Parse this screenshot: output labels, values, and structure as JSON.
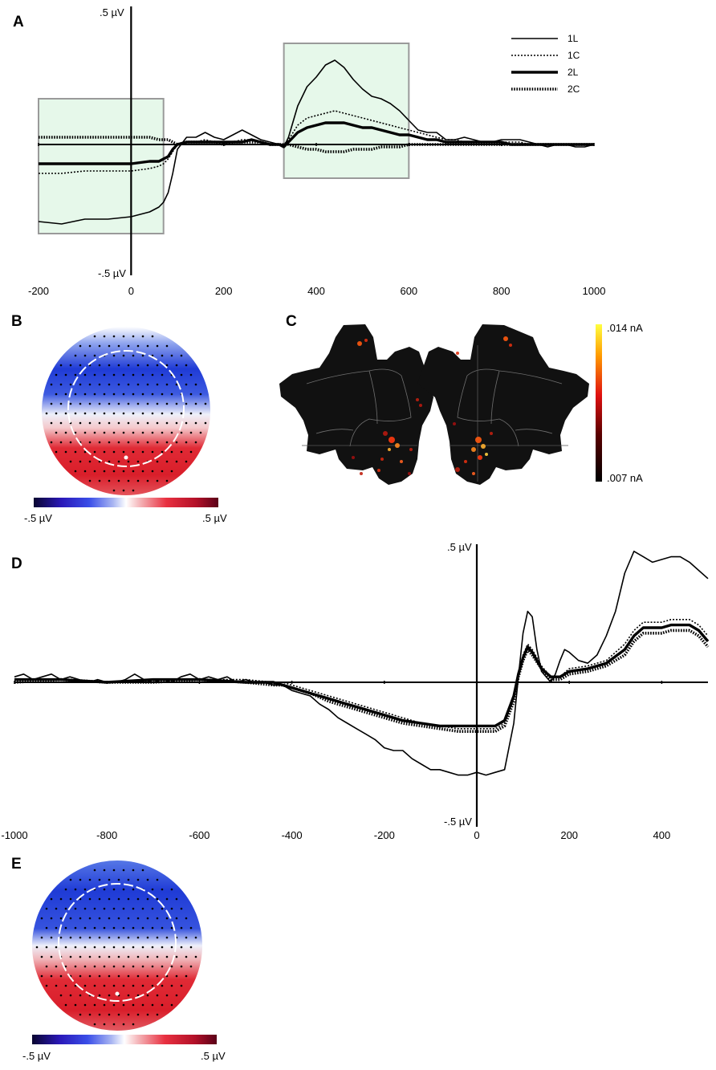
{
  "figure": {
    "background": "#ffffff",
    "colors": {
      "window_fill": "#e6f8ea",
      "window_stroke": "#9a9a9a",
      "topo_negative": "#1f3bd6",
      "topo_positive": "#d91e2a",
      "brain_fill": "#111111"
    }
  },
  "panels": {
    "A": {
      "letter": "A"
    },
    "B": {
      "letter": "B"
    },
    "C": {
      "letter": "C"
    },
    "D": {
      "letter": "D"
    },
    "E": {
      "letter": "E"
    }
  },
  "chart_data": [
    {
      "panel": "A",
      "type": "line",
      "title": "",
      "xlabel": "",
      "ylabel": "",
      "xlim": [
        -200,
        1000
      ],
      "ylim": [
        -0.5,
        0.5
      ],
      "y_top_label": ".5 µV",
      "y_bottom_label": "-.5 µV",
      "x_ticks": [
        -200,
        0,
        200,
        400,
        600,
        800,
        1000
      ],
      "x_tick_labels": [
        "-200",
        "0",
        "200",
        "400",
        "600",
        "800",
        "1000"
      ],
      "highlight_windows": [
        {
          "x": [
            -200,
            70
          ],
          "y": [
            -0.37,
            0.19
          ]
        },
        {
          "x": [
            330,
            600
          ],
          "y": [
            -0.14,
            0.42
          ]
        }
      ],
      "series": [
        {
          "name": "1L",
          "style": "thin-solid",
          "x": [
            -200,
            -150,
            -100,
            -50,
            0,
            40,
            60,
            70,
            80,
            90,
            100,
            120,
            140,
            160,
            180,
            200,
            220,
            240,
            260,
            280,
            300,
            320,
            330,
            340,
            360,
            380,
            400,
            420,
            440,
            460,
            480,
            500,
            520,
            540,
            560,
            580,
            600,
            620,
            640,
            660,
            680,
            700,
            720,
            740,
            760,
            780,
            800,
            820,
            840,
            860,
            880,
            900,
            920,
            940,
            960,
            980,
            1000
          ],
          "values": [
            -0.32,
            -0.33,
            -0.31,
            -0.31,
            -0.3,
            -0.28,
            -0.26,
            -0.24,
            -0.2,
            -0.12,
            -0.02,
            0.03,
            0.03,
            0.05,
            0.03,
            0.02,
            0.04,
            0.06,
            0.04,
            0.02,
            0.01,
            0.0,
            -0.01,
            0.03,
            0.16,
            0.24,
            0.28,
            0.33,
            0.35,
            0.32,
            0.27,
            0.23,
            0.2,
            0.19,
            0.17,
            0.14,
            0.1,
            0.06,
            0.05,
            0.05,
            0.02,
            0.02,
            0.03,
            0.02,
            0.01,
            0.01,
            0.02,
            0.02,
            0.02,
            0.01,
            0.0,
            -0.01,
            0.0,
            0.0,
            -0.01,
            -0.01,
            0.0
          ]
        },
        {
          "name": "1C",
          "style": "thin-dotted",
          "x": [
            -200,
            -150,
            -100,
            -50,
            0,
            40,
            60,
            70,
            80,
            90,
            100,
            120,
            140,
            160,
            180,
            200,
            220,
            240,
            260,
            280,
            300,
            320,
            330,
            340,
            360,
            380,
            400,
            420,
            440,
            460,
            480,
            500,
            520,
            540,
            560,
            580,
            600,
            620,
            640,
            660,
            680,
            700,
            720,
            740,
            760,
            780,
            800,
            820,
            840,
            860,
            880,
            900,
            920,
            940,
            960,
            980,
            1000
          ],
          "values": [
            -0.12,
            -0.12,
            -0.11,
            -0.11,
            -0.11,
            -0.1,
            -0.09,
            -0.08,
            -0.06,
            -0.03,
            0.0,
            0.01,
            0.01,
            0.02,
            0.01,
            0.0,
            0.01,
            0.02,
            0.02,
            0.01,
            0.0,
            0.0,
            0.0,
            0.02,
            0.08,
            0.11,
            0.12,
            0.13,
            0.14,
            0.13,
            0.12,
            0.11,
            0.1,
            0.09,
            0.08,
            0.07,
            0.06,
            0.05,
            0.04,
            0.03,
            0.02,
            0.02,
            0.01,
            0.01,
            0.01,
            0.01,
            0.01,
            0.01,
            0.01,
            0.0,
            0.0,
            0.0,
            0.0,
            0.0,
            0.0,
            0.0,
            0.0
          ]
        },
        {
          "name": "2L",
          "style": "thick-solid",
          "x": [
            -200,
            -150,
            -100,
            -50,
            0,
            40,
            60,
            70,
            80,
            90,
            100,
            120,
            140,
            160,
            180,
            200,
            220,
            240,
            260,
            280,
            300,
            320,
            330,
            340,
            360,
            380,
            400,
            420,
            440,
            460,
            480,
            500,
            520,
            540,
            560,
            580,
            600,
            620,
            640,
            660,
            680,
            700,
            720,
            740,
            760,
            780,
            800,
            820,
            840,
            860,
            880,
            900,
            920,
            940,
            960,
            980,
            1000
          ],
          "values": [
            -0.08,
            -0.08,
            -0.08,
            -0.08,
            -0.08,
            -0.07,
            -0.07,
            -0.06,
            -0.05,
            -0.02,
            0.0,
            0.01,
            0.01,
            0.01,
            0.01,
            0.01,
            0.01,
            0.01,
            0.02,
            0.01,
            0.0,
            0.0,
            -0.01,
            0.01,
            0.05,
            0.07,
            0.08,
            0.09,
            0.09,
            0.09,
            0.08,
            0.07,
            0.07,
            0.06,
            0.05,
            0.04,
            0.04,
            0.03,
            0.02,
            0.02,
            0.01,
            0.01,
            0.01,
            0.01,
            0.01,
            0.01,
            0.01,
            0.0,
            0.0,
            0.0,
            0.0,
            0.0,
            0.0,
            0.0,
            0.0,
            0.0,
            0.0
          ]
        },
        {
          "name": "2C",
          "style": "thick-dotted",
          "x": [
            -200,
            -150,
            -100,
            -50,
            0,
            40,
            60,
            70,
            80,
            90,
            100,
            120,
            140,
            160,
            180,
            200,
            220,
            240,
            260,
            280,
            300,
            320,
            330,
            340,
            360,
            380,
            400,
            420,
            440,
            460,
            480,
            500,
            520,
            540,
            560,
            580,
            600,
            620,
            640,
            660,
            680,
            700,
            720,
            740,
            760,
            780,
            800,
            820,
            840,
            860,
            880,
            900,
            920,
            940,
            960,
            980,
            1000
          ],
          "values": [
            0.03,
            0.03,
            0.03,
            0.03,
            0.03,
            0.03,
            0.02,
            0.02,
            0.02,
            0.01,
            0.0,
            0.01,
            0.01,
            0.01,
            0.01,
            0.0,
            0.01,
            0.01,
            0.01,
            0.01,
            0.0,
            0.0,
            0.0,
            0.0,
            -0.01,
            -0.02,
            -0.02,
            -0.03,
            -0.03,
            -0.03,
            -0.02,
            -0.02,
            -0.02,
            -0.01,
            -0.01,
            -0.01,
            0.0,
            0.0,
            0.0,
            0.0,
            0.0,
            0.0,
            0.0,
            0.0,
            0.0,
            0.0,
            0.0,
            0.0,
            0.0,
            0.0,
            0.0,
            0.0,
            0.0,
            0.0,
            0.0,
            0.0,
            0.0
          ]
        }
      ],
      "legend": [
        {
          "name": "1L",
          "style": "thin-solid"
        },
        {
          "name": "1C",
          "style": "thin-dotted"
        },
        {
          "name": "2L",
          "style": "thick-solid"
        },
        {
          "name": "2C",
          "style": "thick-dotted"
        }
      ],
      "legend_position": "top-right"
    },
    {
      "panel": "D",
      "type": "line",
      "title": "",
      "xlabel": "",
      "ylabel": "",
      "xlim": [
        -1000,
        500
      ],
      "ylim": [
        -0.5,
        0.5
      ],
      "y_top_label": ".5 µV",
      "y_bottom_label": "-.5 µV",
      "x_ticks": [
        -1000,
        -800,
        -600,
        -400,
        -200,
        0,
        200,
        400
      ],
      "x_tick_labels": [
        "-1000",
        "-800",
        "-600",
        "-400",
        "-200",
        "0",
        "200",
        "400"
      ],
      "series": [
        {
          "name": "1L",
          "style": "thin-solid",
          "x": [
            -1000,
            -980,
            -960,
            -940,
            -920,
            -900,
            -880,
            -860,
            -840,
            -820,
            -800,
            -780,
            -760,
            -740,
            -720,
            -700,
            -680,
            -660,
            -640,
            -620,
            -600,
            -580,
            -560,
            -540,
            -520,
            -500,
            -480,
            -460,
            -440,
            -420,
            -400,
            -380,
            -360,
            -340,
            -320,
            -300,
            -280,
            -260,
            -240,
            -220,
            -200,
            -180,
            -160,
            -140,
            -120,
            -100,
            -80,
            -60,
            -40,
            -20,
            0,
            20,
            40,
            60,
            80,
            90,
            100,
            110,
            120,
            130,
            140,
            150,
            160,
            170,
            180,
            190,
            200,
            220,
            240,
            260,
            280,
            300,
            320,
            340,
            360,
            380,
            400,
            420,
            440,
            460,
            480,
            500
          ],
          "values": [
            0.02,
            0.03,
            0.01,
            0.02,
            0.03,
            0.01,
            0.02,
            0.01,
            0.0,
            0.01,
            0.0,
            0.0,
            0.01,
            0.03,
            0.01,
            0.0,
            0.01,
            0.0,
            0.02,
            0.03,
            0.01,
            0.02,
            0.01,
            0.02,
            0.0,
            0.01,
            0.0,
            0.0,
            -0.01,
            -0.01,
            -0.03,
            -0.04,
            -0.05,
            -0.08,
            -0.1,
            -0.13,
            -0.15,
            -0.17,
            -0.19,
            -0.21,
            -0.24,
            -0.25,
            -0.25,
            -0.28,
            -0.3,
            -0.32,
            -0.32,
            -0.33,
            -0.34,
            -0.34,
            -0.33,
            -0.34,
            -0.33,
            -0.32,
            -0.15,
            0.02,
            0.18,
            0.26,
            0.24,
            0.12,
            0.04,
            0.02,
            0.0,
            0.03,
            0.08,
            0.12,
            0.11,
            0.08,
            0.07,
            0.1,
            0.17,
            0.26,
            0.4,
            0.48,
            0.46,
            0.44,
            0.45,
            0.46,
            0.46,
            0.44,
            0.41,
            0.38
          ]
        },
        {
          "name": "1C",
          "style": "thin-dotted",
          "x": [
            -1000,
            -900,
            -800,
            -700,
            -600,
            -500,
            -440,
            -420,
            -400,
            -360,
            -320,
            -280,
            -240,
            -200,
            -160,
            -120,
            -80,
            -40,
            0,
            40,
            60,
            80,
            90,
            100,
            110,
            120,
            140,
            160,
            180,
            200,
            240,
            280,
            320,
            340,
            360,
            380,
            400,
            420,
            440,
            460,
            480,
            500
          ],
          "values": [
            0.01,
            0.01,
            0.0,
            0.01,
            0.01,
            0.01,
            0.0,
            0.0,
            -0.01,
            -0.03,
            -0.05,
            -0.07,
            -0.09,
            -0.11,
            -0.13,
            -0.15,
            -0.16,
            -0.17,
            -0.17,
            -0.17,
            -0.15,
            -0.06,
            0.03,
            0.1,
            0.14,
            0.12,
            0.06,
            0.02,
            0.02,
            0.05,
            0.06,
            0.08,
            0.14,
            0.19,
            0.22,
            0.22,
            0.22,
            0.23,
            0.23,
            0.23,
            0.21,
            0.17
          ]
        },
        {
          "name": "2L",
          "style": "thick-solid",
          "x": [
            -1000,
            -900,
            -800,
            -700,
            -600,
            -500,
            -440,
            -420,
            -400,
            -360,
            -320,
            -280,
            -240,
            -200,
            -160,
            -120,
            -80,
            -40,
            0,
            40,
            60,
            80,
            90,
            100,
            110,
            120,
            140,
            160,
            180,
            200,
            240,
            280,
            320,
            340,
            360,
            380,
            400,
            420,
            440,
            460,
            480,
            500
          ],
          "values": [
            0.01,
            0.01,
            0.0,
            0.01,
            0.01,
            0.0,
            0.0,
            -0.01,
            -0.02,
            -0.04,
            -0.06,
            -0.08,
            -0.1,
            -0.12,
            -0.14,
            -0.15,
            -0.16,
            -0.16,
            -0.16,
            -0.16,
            -0.14,
            -0.05,
            0.03,
            0.09,
            0.13,
            0.11,
            0.05,
            0.02,
            0.02,
            0.04,
            0.05,
            0.07,
            0.12,
            0.17,
            0.2,
            0.2,
            0.2,
            0.21,
            0.21,
            0.21,
            0.19,
            0.15
          ]
        },
        {
          "name": "2C",
          "style": "thick-dotted",
          "x": [
            -1000,
            -900,
            -800,
            -700,
            -600,
            -500,
            -440,
            -420,
            -400,
            -360,
            -320,
            -280,
            -240,
            -200,
            -160,
            -120,
            -80,
            -40,
            0,
            40,
            60,
            80,
            90,
            100,
            110,
            120,
            140,
            160,
            180,
            200,
            240,
            280,
            320,
            340,
            360,
            380,
            400,
            420,
            440,
            460,
            480,
            500
          ],
          "values": [
            0.0,
            0.01,
            0.0,
            0.0,
            0.01,
            0.0,
            -0.01,
            -0.01,
            -0.02,
            -0.04,
            -0.07,
            -0.09,
            -0.11,
            -0.13,
            -0.15,
            -0.16,
            -0.17,
            -0.18,
            -0.18,
            -0.18,
            -0.16,
            -0.07,
            0.02,
            0.08,
            0.12,
            0.1,
            0.05,
            0.01,
            0.01,
            0.03,
            0.04,
            0.06,
            0.1,
            0.15,
            0.18,
            0.18,
            0.18,
            0.19,
            0.19,
            0.19,
            0.17,
            0.13
          ]
        }
      ]
    }
  ],
  "topomaps": {
    "B": {
      "scale_min_label": "-.5 µV",
      "scale_max_label": ".5 µV"
    },
    "E": {
      "scale_min_label": "-.5 µV",
      "scale_max_label": ".5 µV"
    }
  },
  "source_map": {
    "scale_max_label": ".014 nA",
    "scale_min_label": ".007 nA"
  }
}
